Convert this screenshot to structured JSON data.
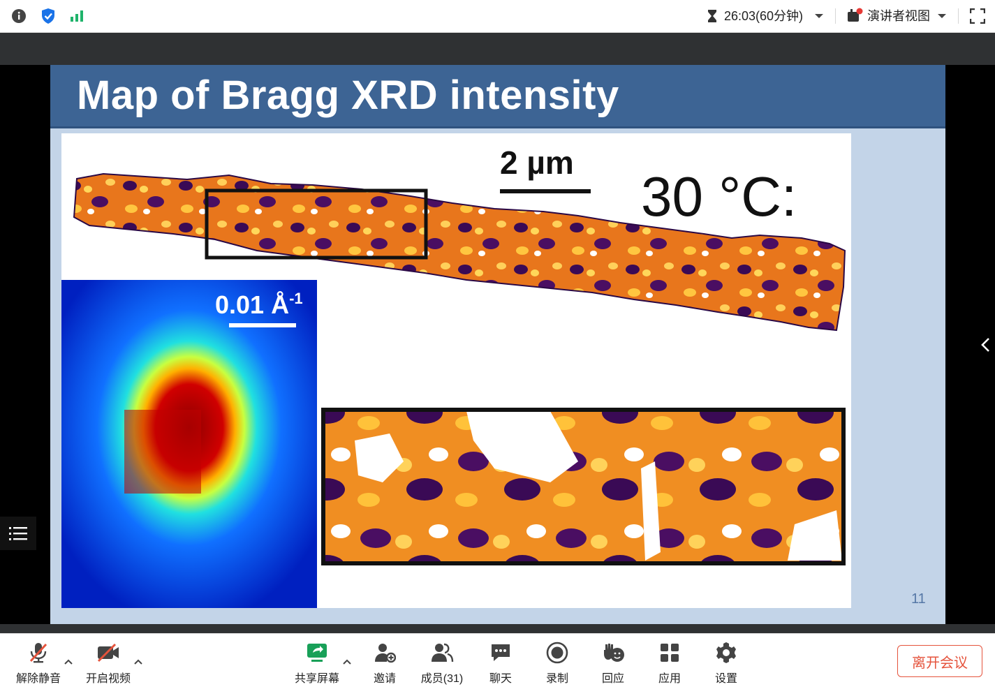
{
  "topbar": {
    "timer": "26:03(60分钟)",
    "presenter_view": "演讲者视图",
    "icons": [
      "info-icon",
      "shield-icon",
      "signal-icon",
      "hourglass-icon",
      "presenter-icon",
      "fullscreen-icon"
    ]
  },
  "slide": {
    "title": "Map of Bragg XRD intensity",
    "scale_um": "2 µm",
    "temperature": "30 °C:",
    "scale_q": "0.01 Å",
    "scale_q_sup": "-1",
    "page_number": "11"
  },
  "toolbar": {
    "unmute": "解除静音",
    "start_video": "开启视频",
    "share_screen": "共享屏幕",
    "invite": "邀请",
    "members": "成员(31)",
    "chat": "聊天",
    "record": "录制",
    "reactions": "回应",
    "apps": "应用",
    "settings": "设置",
    "leave": "离开会议"
  },
  "colors": {
    "header_blue": "#3d6494",
    "slide_bg": "#c3d4e8",
    "leave_red": "#e5533c",
    "share_green": "#18a058"
  }
}
